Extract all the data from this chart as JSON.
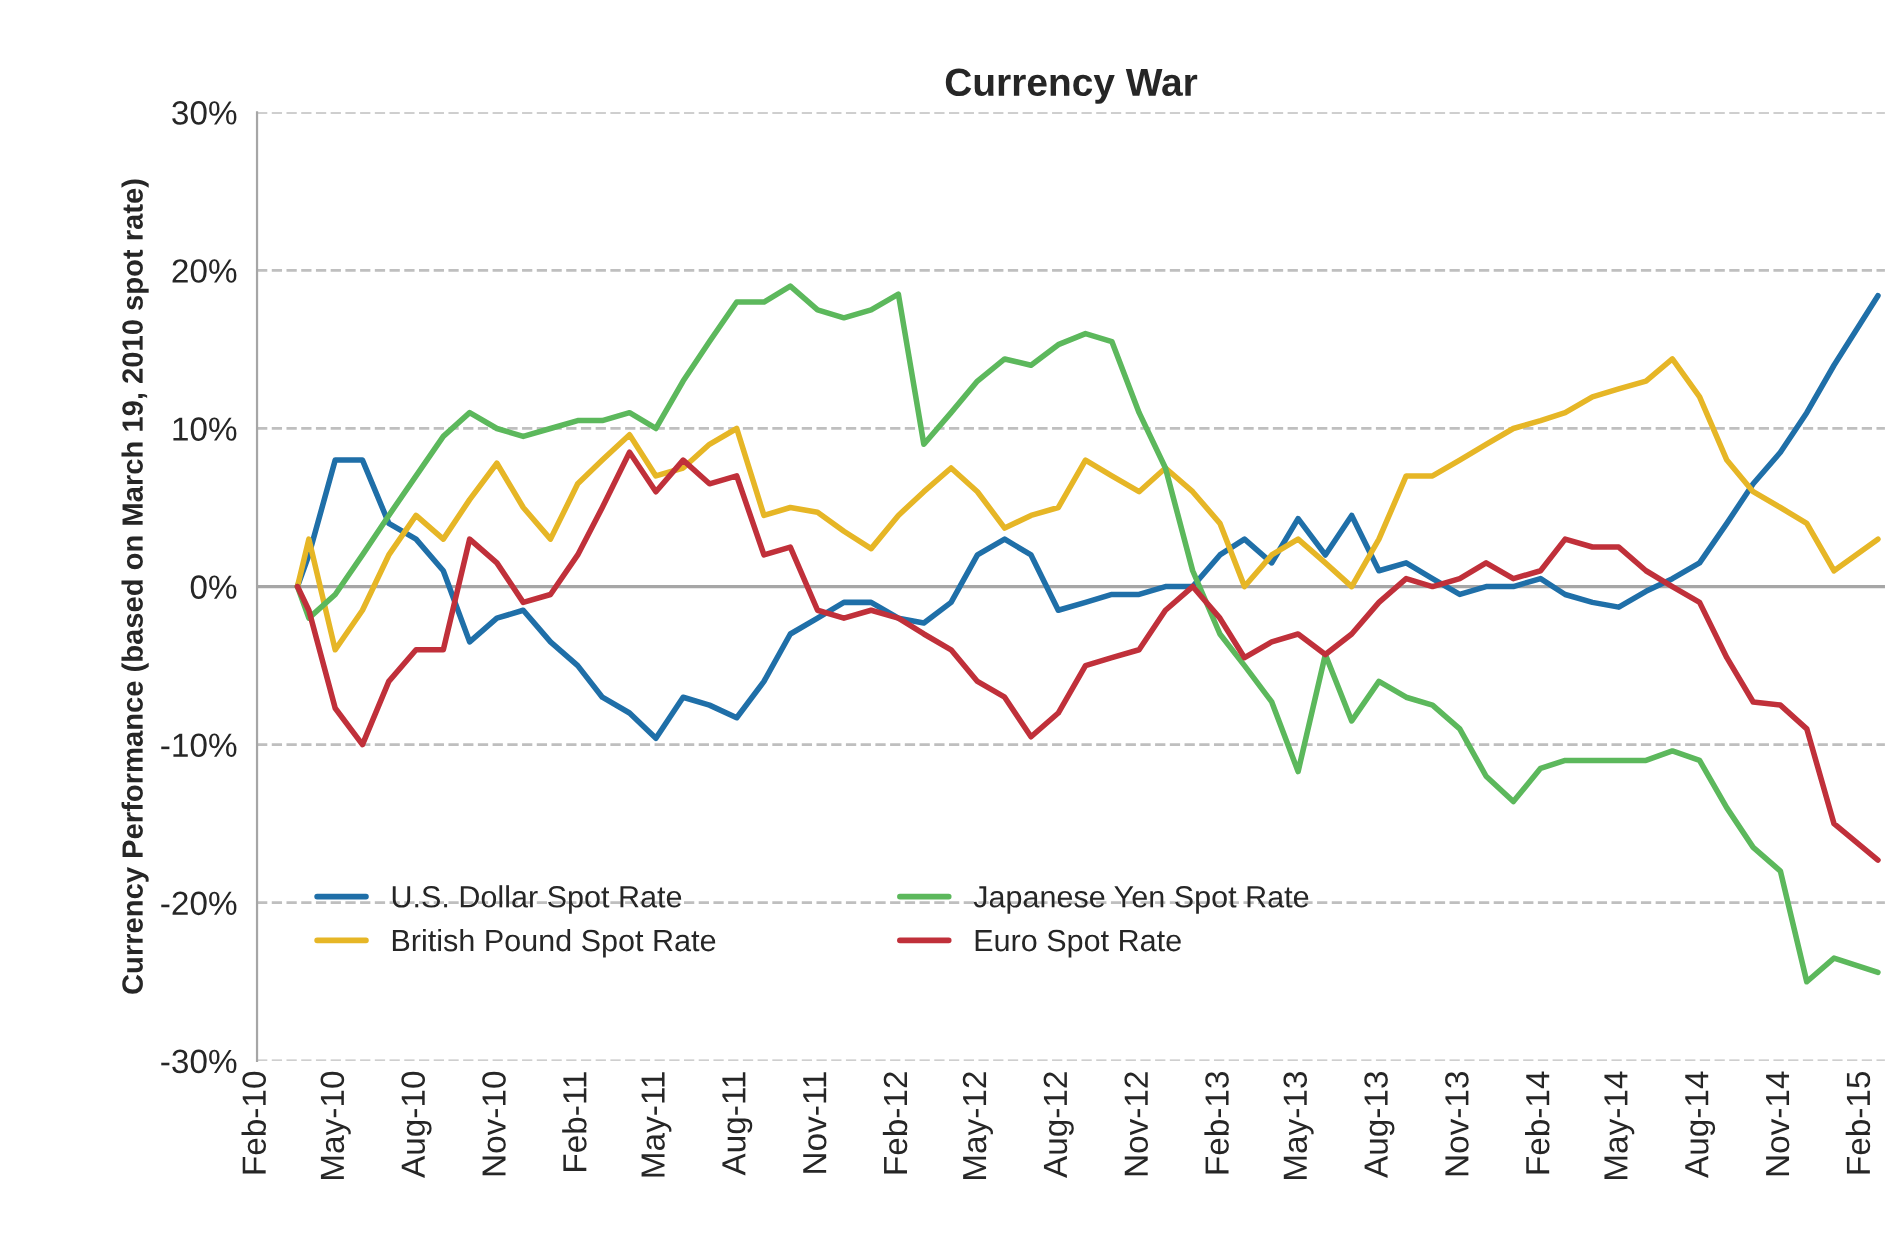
{
  "chart_data": {
    "type": "line",
    "title": "Currency War",
    "ylabel": "Currency Performance (based on March 19, 2010 spot rate)",
    "x": [
      "2010-03-19",
      "2010-04",
      "2010-05",
      "2010-06",
      "2010-07",
      "2010-08",
      "2010-09",
      "2010-10",
      "2010-11",
      "2010-12",
      "2011-01",
      "2011-02",
      "2011-03",
      "2011-04",
      "2011-05",
      "2011-06",
      "2011-07",
      "2011-08",
      "2011-09",
      "2011-10",
      "2011-11",
      "2011-12",
      "2012-01",
      "2012-02",
      "2012-03",
      "2012-04",
      "2012-05",
      "2012-06",
      "2012-07",
      "2012-08",
      "2012-09",
      "2012-10",
      "2012-11",
      "2012-12",
      "2013-01",
      "2013-02",
      "2013-03",
      "2013-04",
      "2013-05",
      "2013-06",
      "2013-07",
      "2013-08",
      "2013-09",
      "2013-10",
      "2013-11",
      "2013-12",
      "2014-01",
      "2014-02",
      "2014-03",
      "2014-04",
      "2014-05",
      "2014-06",
      "2014-07",
      "2014-08",
      "2014-09",
      "2014-10",
      "2014-11",
      "2014-12",
      "2015-01",
      "2015-02-20"
    ],
    "series": [
      {
        "name": "U.S. Dollar Spot Rate",
        "color": "#1f6fa8",
        "values": [
          0,
          2,
          8,
          8,
          4,
          3,
          1,
          -3.5,
          -2,
          -1.5,
          -3.5,
          -5,
          -7,
          -8,
          -9.6,
          -7,
          -7.5,
          -8.3,
          -6,
          -3,
          -2,
          -1,
          -1,
          -2,
          -2.3,
          -1,
          2,
          3,
          2,
          -1.5,
          -1,
          -0.5,
          -0.5,
          0,
          0,
          2,
          3,
          1.5,
          4.3,
          2,
          4.5,
          1,
          1.5,
          0.5,
          -0.5,
          0,
          0,
          0.5,
          -0.5,
          -1,
          -1.3,
          -0.3,
          0.5,
          1.5,
          4,
          6.5,
          8.5,
          11,
          14,
          18.4
        ]
      },
      {
        "name": "British Pound Spot Rate",
        "color": "#e6b626",
        "values": [
          0,
          3,
          -4,
          -1.5,
          2,
          4.5,
          3,
          5.5,
          7.8,
          5,
          3,
          6.5,
          8,
          9.6,
          7,
          7.5,
          9,
          10,
          4.5,
          5,
          4.7,
          3.5,
          2.4,
          4.5,
          6,
          7.5,
          6,
          3.7,
          4.5,
          5,
          8,
          7,
          6,
          7.5,
          6,
          4,
          0,
          2,
          3,
          1.5,
          0,
          3,
          7,
          7,
          8,
          9,
          10,
          10.5,
          11,
          12,
          12.5,
          13,
          14.4,
          12,
          8,
          6,
          5,
          4,
          1,
          3
        ]
      },
      {
        "name": "Japanese Yen Spot Rate",
        "color": "#5cb85c",
        "values": [
          0,
          -2,
          -0.5,
          2,
          4.5,
          7,
          9.5,
          11,
          10,
          9.5,
          10,
          10.5,
          10.5,
          11,
          10,
          13,
          15.5,
          18,
          18,
          19,
          17.5,
          17,
          17.5,
          18.5,
          9,
          11,
          13,
          14.4,
          14,
          15.3,
          16,
          15.5,
          11,
          7.5,
          1,
          -3,
          -5,
          -7.3,
          -11.7,
          -4.3,
          -8.5,
          -6,
          -7,
          -7.5,
          -9,
          -12,
          -13.6,
          -11.5,
          -11,
          -11,
          -11,
          -11,
          -10.4,
          -11,
          -14,
          -16.5,
          -18,
          -25,
          -23.5,
          -24.4
        ]
      },
      {
        "name": "Euro Spot Rate",
        "color": "#c0303a",
        "values": [
          0,
          -1.5,
          -7.7,
          -10,
          -6,
          -4,
          -4,
          3,
          1.5,
          -1,
          -0.5,
          2,
          5,
          8.5,
          6,
          8,
          6.5,
          7,
          2,
          2.5,
          -1.5,
          -2,
          -1.5,
          -2,
          -3,
          -4,
          -6,
          -7,
          -9.5,
          -8,
          -5,
          -4.5,
          -4,
          -1.5,
          0,
          -2,
          -4.5,
          -3.5,
          -3,
          -4.3,
          -3,
          -1,
          0.5,
          0,
          0.5,
          1.5,
          0.5,
          1,
          3,
          2.5,
          2.5,
          1,
          0,
          -1,
          -4.5,
          -7.3,
          -7.5,
          -9,
          -15,
          -17.3
        ]
      }
    ],
    "xlim": [
      "2010-02-01",
      "2015-02-28"
    ],
    "xticks": [
      {
        "value": "2010-02",
        "label": "Feb-10"
      },
      {
        "value": "2010-05",
        "label": "May-10"
      },
      {
        "value": "2010-08",
        "label": "Aug-10"
      },
      {
        "value": "2010-11",
        "label": "Nov-10"
      },
      {
        "value": "2011-02",
        "label": "Feb-11"
      },
      {
        "value": "2011-05",
        "label": "May-11"
      },
      {
        "value": "2011-08",
        "label": "Aug-11"
      },
      {
        "value": "2011-11",
        "label": "Nov-11"
      },
      {
        "value": "2012-02",
        "label": "Feb-12"
      },
      {
        "value": "2012-05",
        "label": "May-12"
      },
      {
        "value": "2012-08",
        "label": "Aug-12"
      },
      {
        "value": "2012-11",
        "label": "Nov-12"
      },
      {
        "value": "2013-02",
        "label": "Feb-13"
      },
      {
        "value": "2013-05",
        "label": "May-13"
      },
      {
        "value": "2013-08",
        "label": "Aug-13"
      },
      {
        "value": "2013-11",
        "label": "Nov-13"
      },
      {
        "value": "2014-02",
        "label": "Feb-14"
      },
      {
        "value": "2014-05",
        "label": "May-14"
      },
      {
        "value": "2014-08",
        "label": "Aug-14"
      },
      {
        "value": "2014-11",
        "label": "Nov-14"
      },
      {
        "value": "2015-02",
        "label": "Feb-15"
      }
    ],
    "ylim": [
      -30,
      30
    ],
    "yticks": [
      {
        "value": -30,
        "label": "-30%"
      },
      {
        "value": -20,
        "label": "-20%"
      },
      {
        "value": -10,
        "label": "-10%"
      },
      {
        "value": 0,
        "label": "0%"
      },
      {
        "value": 10,
        "label": "10%"
      },
      {
        "value": 20,
        "label": "20%"
      },
      {
        "value": 30,
        "label": "30%"
      }
    ],
    "ref_lines": [
      {
        "axis": "y",
        "value": 0,
        "color": "#a6a6a6"
      }
    ],
    "grid": "y",
    "legend": "bottom left",
    "line_style": "solid"
  }
}
